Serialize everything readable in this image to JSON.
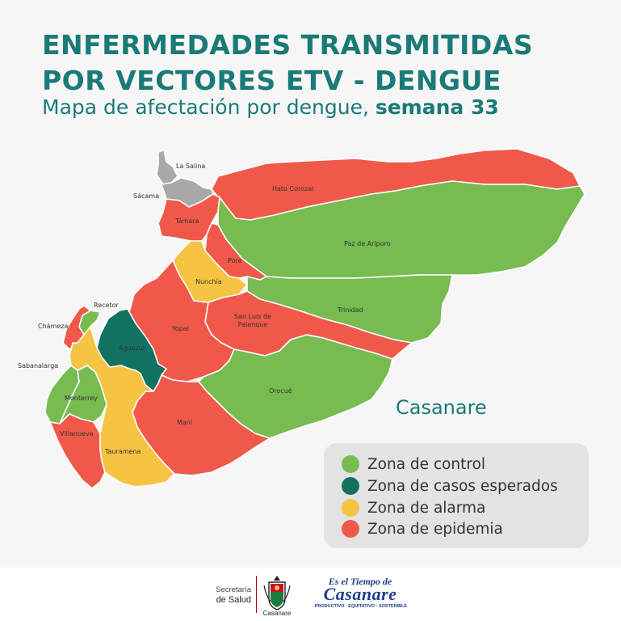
{
  "title_line1": "ENFERMEDADES TRANSMITIDAS",
  "title_line2": "POR VECTORES ETV - DENGUE",
  "subtitle_prefix": "Mapa de afectación por dengue, ",
  "subtitle_bold": "semana 33",
  "department_name": "Casanare",
  "colors": {
    "control": "#77bb51",
    "esperados": "#117261",
    "alarma": "#f6c343",
    "epidemia": "#f0594a",
    "sin_dato": "#a8a8a8"
  },
  "legend": [
    {
      "label": "Zona de control",
      "status": "control"
    },
    {
      "label": "Zona de casos esperados",
      "status": "esperados"
    },
    {
      "label": "Zona de alarma",
      "status": "alarma"
    },
    {
      "label": "Zona de epidemia",
      "status": "epidemia"
    }
  ],
  "municipalities": [
    {
      "name": "La Salina",
      "status": "sin_dato"
    },
    {
      "name": "Sácama",
      "status": "sin_dato"
    },
    {
      "name": "Hato Corozal",
      "status": "epidemia"
    },
    {
      "name": "Támara",
      "status": "epidemia"
    },
    {
      "name": "Paz de Ariporo",
      "status": "control"
    },
    {
      "name": "Pore",
      "status": "epidemia"
    },
    {
      "name": "Nunchía",
      "status": "alarma"
    },
    {
      "name": "Trinidad",
      "status": "control"
    },
    {
      "name": "San Luis de Palenque",
      "status": "epidemia"
    },
    {
      "name": "Recetor",
      "status": "control"
    },
    {
      "name": "Chámeza",
      "status": "epidemia"
    },
    {
      "name": "Yopal",
      "status": "epidemia"
    },
    {
      "name": "Aguazul",
      "status": "esperados"
    },
    {
      "name": "Sabanalarga",
      "status": "control"
    },
    {
      "name": "Monterrey",
      "status": "control"
    },
    {
      "name": "Orocué",
      "status": "control"
    },
    {
      "name": "Maní",
      "status": "epidemia"
    },
    {
      "name": "Villanueva",
      "status": "epidemia"
    },
    {
      "name": "Tauramena",
      "status": "alarma"
    }
  ],
  "footer": {
    "secretaria_line1": "Secretaría",
    "secretaria_line2": "de Salud",
    "gobernacion": "Casanare",
    "brand_top": "Es el Tiempo de",
    "brand_main": "Casanare",
    "brand_sub": "-PRODUCTIVO · EQUITATIVO · SOSTENIBLE"
  }
}
